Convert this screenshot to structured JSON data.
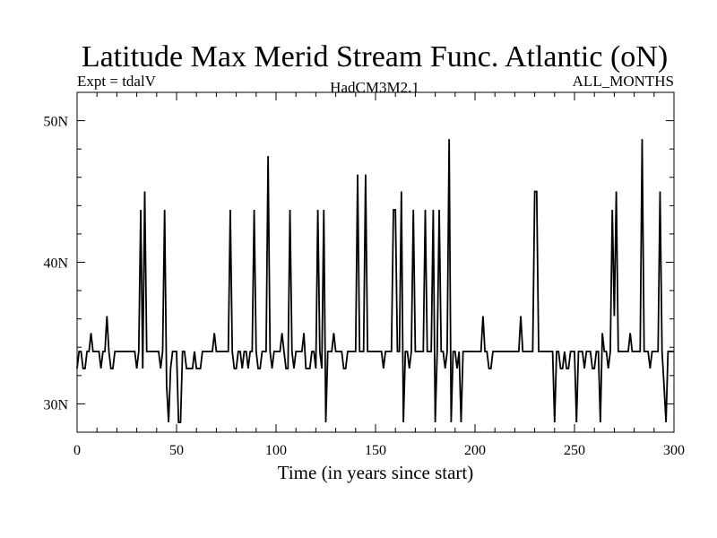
{
  "chart_data": {
    "type": "line",
    "title": "Latitude Max Merid Stream Func. Atlantic (oN)",
    "subtitle_left": "Expt = tdalV",
    "subtitle_center": "HadCM3M2.1",
    "subtitle_right": "ALL_MONTHS",
    "xlabel": "Time (in years since start)",
    "ylabel": "",
    "xlim": [
      0,
      300
    ],
    "ylim": [
      28,
      52
    ],
    "x_ticks": [
      0,
      50,
      100,
      150,
      200,
      250,
      300
    ],
    "x_tick_labels": [
      "0",
      "50",
      "100",
      "150",
      "200",
      "250",
      "300"
    ],
    "y_ticks": [
      30,
      40,
      50
    ],
    "y_tick_labels": [
      "30N",
      "40N",
      "50N"
    ],
    "grid": false,
    "line_color": "#000000",
    "series": [
      {
        "values": [
          [
            0,
            32.5
          ],
          [
            1,
            33.7
          ],
          [
            2,
            33.7
          ],
          [
            3,
            32.5
          ],
          [
            4,
            32.5
          ],
          [
            5,
            33.7
          ],
          [
            6,
            33.7
          ],
          [
            7,
            35.0
          ],
          [
            8,
            33.7
          ],
          [
            9,
            33.7
          ],
          [
            10,
            33.7
          ],
          [
            11,
            33.7
          ],
          [
            12,
            32.5
          ],
          [
            13,
            33.7
          ],
          [
            14,
            33.7
          ],
          [
            15,
            36.2
          ],
          [
            16,
            33.7
          ],
          [
            17,
            32.5
          ],
          [
            18,
            32.5
          ],
          [
            19,
            33.7
          ],
          [
            20,
            33.7
          ],
          [
            21,
            33.7
          ],
          [
            22,
            33.7
          ],
          [
            23,
            33.7
          ],
          [
            24,
            33.7
          ],
          [
            25,
            33.7
          ],
          [
            26,
            33.7
          ],
          [
            27,
            33.7
          ],
          [
            28,
            33.7
          ],
          [
            29,
            33.7
          ],
          [
            30,
            32.5
          ],
          [
            31,
            33.7
          ],
          [
            32,
            43.7
          ],
          [
            33,
            32.5
          ],
          [
            34,
            45.0
          ],
          [
            35,
            33.7
          ],
          [
            36,
            33.7
          ],
          [
            37,
            33.7
          ],
          [
            38,
            33.7
          ],
          [
            39,
            33.7
          ],
          [
            40,
            33.7
          ],
          [
            41,
            33.7
          ],
          [
            42,
            32.5
          ],
          [
            43,
            33.7
          ],
          [
            44,
            43.7
          ],
          [
            45,
            31.3
          ],
          [
            46,
            28.7
          ],
          [
            47,
            32.5
          ],
          [
            48,
            33.7
          ],
          [
            49,
            33.7
          ],
          [
            50,
            33.7
          ],
          [
            51,
            28.7
          ],
          [
            52,
            28.7
          ],
          [
            53,
            33.7
          ],
          [
            54,
            33.7
          ],
          [
            55,
            32.5
          ],
          [
            56,
            32.5
          ],
          [
            57,
            32.5
          ],
          [
            58,
            32.5
          ],
          [
            59,
            33.7
          ],
          [
            60,
            32.5
          ],
          [
            61,
            32.5
          ],
          [
            62,
            32.5
          ],
          [
            63,
            33.7
          ],
          [
            64,
            33.7
          ],
          [
            65,
            33.7
          ],
          [
            66,
            33.7
          ],
          [
            67,
            33.7
          ],
          [
            68,
            33.7
          ],
          [
            69,
            35.0
          ],
          [
            70,
            33.7
          ],
          [
            71,
            33.7
          ],
          [
            72,
            33.7
          ],
          [
            73,
            33.7
          ],
          [
            74,
            33.7
          ],
          [
            75,
            33.7
          ],
          [
            76,
            33.7
          ],
          [
            77,
            43.7
          ],
          [
            78,
            33.7
          ],
          [
            79,
            32.5
          ],
          [
            80,
            32.5
          ],
          [
            81,
            33.7
          ],
          [
            82,
            33.7
          ],
          [
            83,
            32.5
          ],
          [
            84,
            33.7
          ],
          [
            85,
            33.7
          ],
          [
            86,
            32.5
          ],
          [
            87,
            33.7
          ],
          [
            88,
            33.7
          ],
          [
            89,
            43.7
          ],
          [
            90,
            33.7
          ],
          [
            91,
            32.5
          ],
          [
            92,
            32.5
          ],
          [
            93,
            33.7
          ],
          [
            94,
            33.7
          ],
          [
            95,
            33.7
          ],
          [
            96,
            47.5
          ],
          [
            97,
            33.7
          ],
          [
            98,
            32.5
          ],
          [
            99,
            33.7
          ],
          [
            100,
            33.7
          ],
          [
            101,
            33.7
          ],
          [
            102,
            33.7
          ],
          [
            103,
            35.0
          ],
          [
            104,
            33.7
          ],
          [
            105,
            32.5
          ],
          [
            106,
            32.5
          ],
          [
            107,
            43.7
          ],
          [
            108,
            33.7
          ],
          [
            109,
            32.5
          ],
          [
            110,
            33.7
          ],
          [
            111,
            33.7
          ],
          [
            112,
            33.7
          ],
          [
            113,
            33.7
          ],
          [
            114,
            35.0
          ],
          [
            115,
            32.5
          ],
          [
            116,
            32.5
          ],
          [
            117,
            32.5
          ],
          [
            118,
            33.7
          ],
          [
            119,
            33.7
          ],
          [
            120,
            32.5
          ],
          [
            121,
            43.7
          ],
          [
            122,
            33.7
          ],
          [
            123,
            32.5
          ],
          [
            124,
            43.7
          ],
          [
            125,
            28.7
          ],
          [
            126,
            33.7
          ],
          [
            127,
            33.7
          ],
          [
            128,
            33.7
          ],
          [
            129,
            35.0
          ],
          [
            130,
            33.7
          ],
          [
            131,
            33.7
          ],
          [
            132,
            33.7
          ],
          [
            133,
            33.7
          ],
          [
            134,
            32.5
          ],
          [
            135,
            32.5
          ],
          [
            136,
            33.7
          ],
          [
            137,
            33.7
          ],
          [
            138,
            33.7
          ],
          [
            139,
            33.7
          ],
          [
            140,
            33.7
          ],
          [
            141,
            46.2
          ],
          [
            142,
            33.7
          ],
          [
            143,
            33.7
          ],
          [
            144,
            33.7
          ],
          [
            145,
            46.2
          ],
          [
            146,
            33.7
          ],
          [
            147,
            33.7
          ],
          [
            148,
            33.7
          ],
          [
            149,
            33.7
          ],
          [
            150,
            33.7
          ],
          [
            151,
            33.7
          ],
          [
            152,
            33.7
          ],
          [
            153,
            33.7
          ],
          [
            154,
            32.5
          ],
          [
            155,
            33.7
          ],
          [
            156,
            33.7
          ],
          [
            157,
            33.7
          ],
          [
            158,
            33.7
          ],
          [
            159,
            43.7
          ],
          [
            160,
            43.7
          ],
          [
            161,
            33.7
          ],
          [
            162,
            33.7
          ],
          [
            163,
            45.0
          ],
          [
            164,
            28.7
          ],
          [
            165,
            33.7
          ],
          [
            166,
            33.7
          ],
          [
            167,
            32.5
          ],
          [
            168,
            33.7
          ],
          [
            169,
            43.7
          ],
          [
            170,
            33.7
          ],
          [
            171,
            33.7
          ],
          [
            172,
            33.7
          ],
          [
            173,
            33.7
          ],
          [
            174,
            33.7
          ],
          [
            175,
            43.7
          ],
          [
            176,
            33.7
          ],
          [
            177,
            33.7
          ],
          [
            178,
            33.7
          ],
          [
            179,
            43.7
          ],
          [
            180,
            28.7
          ],
          [
            181,
            33.7
          ],
          [
            182,
            43.7
          ],
          [
            183,
            33.7
          ],
          [
            184,
            33.7
          ],
          [
            185,
            32.5
          ],
          [
            186,
            33.7
          ],
          [
            187,
            48.7
          ],
          [
            188,
            28.7
          ],
          [
            189,
            33.7
          ],
          [
            190,
            33.7
          ],
          [
            191,
            32.5
          ],
          [
            192,
            33.7
          ],
          [
            193,
            28.7
          ],
          [
            194,
            33.7
          ],
          [
            195,
            33.7
          ],
          [
            196,
            33.7
          ],
          [
            197,
            33.7
          ],
          [
            198,
            33.7
          ],
          [
            199,
            33.7
          ],
          [
            200,
            33.7
          ],
          [
            201,
            33.7
          ],
          [
            202,
            33.7
          ],
          [
            203,
            33.7
          ],
          [
            204,
            36.2
          ],
          [
            205,
            33.7
          ],
          [
            206,
            33.7
          ],
          [
            207,
            32.5
          ],
          [
            208,
            32.5
          ],
          [
            209,
            33.7
          ],
          [
            210,
            33.7
          ],
          [
            211,
            33.7
          ],
          [
            212,
            33.7
          ],
          [
            213,
            33.7
          ],
          [
            214,
            33.7
          ],
          [
            215,
            33.7
          ],
          [
            216,
            33.7
          ],
          [
            217,
            33.7
          ],
          [
            218,
            33.7
          ],
          [
            219,
            33.7
          ],
          [
            220,
            33.7
          ],
          [
            221,
            33.7
          ],
          [
            222,
            33.7
          ],
          [
            223,
            36.2
          ],
          [
            224,
            33.7
          ],
          [
            225,
            33.7
          ],
          [
            226,
            33.7
          ],
          [
            227,
            33.7
          ],
          [
            228,
            33.7
          ],
          [
            229,
            33.7
          ],
          [
            230,
            45.0
          ],
          [
            231,
            45.0
          ],
          [
            232,
            33.7
          ],
          [
            233,
            33.7
          ],
          [
            234,
            33.7
          ],
          [
            235,
            33.7
          ],
          [
            236,
            33.7
          ],
          [
            237,
            33.7
          ],
          [
            238,
            33.7
          ],
          [
            239,
            33.7
          ],
          [
            240,
            28.7
          ],
          [
            241,
            33.7
          ],
          [
            242,
            33.7
          ],
          [
            243,
            32.5
          ],
          [
            244,
            32.5
          ],
          [
            245,
            33.7
          ],
          [
            246,
            32.5
          ],
          [
            247,
            32.5
          ],
          [
            248,
            33.7
          ],
          [
            249,
            33.7
          ],
          [
            250,
            33.7
          ],
          [
            251,
            28.7
          ],
          [
            252,
            33.7
          ],
          [
            253,
            33.7
          ],
          [
            254,
            33.7
          ],
          [
            255,
            32.5
          ],
          [
            256,
            33.7
          ],
          [
            257,
            33.7
          ],
          [
            258,
            33.7
          ],
          [
            259,
            32.5
          ],
          [
            260,
            32.5
          ],
          [
            261,
            33.7
          ],
          [
            262,
            33.7
          ],
          [
            263,
            28.7
          ],
          [
            264,
            35.0
          ],
          [
            265,
            33.7
          ],
          [
            266,
            33.7
          ],
          [
            267,
            32.5
          ],
          [
            268,
            33.7
          ],
          [
            269,
            43.7
          ],
          [
            270,
            36.2
          ],
          [
            271,
            45.0
          ],
          [
            272,
            33.7
          ],
          [
            273,
            33.7
          ],
          [
            274,
            33.7
          ],
          [
            275,
            33.7
          ],
          [
            276,
            33.7
          ],
          [
            277,
            33.7
          ],
          [
            278,
            35.0
          ],
          [
            279,
            33.7
          ],
          [
            280,
            33.7
          ],
          [
            281,
            33.7
          ],
          [
            282,
            33.7
          ],
          [
            283,
            33.7
          ],
          [
            284,
            48.7
          ],
          [
            285,
            33.7
          ],
          [
            286,
            33.7
          ],
          [
            287,
            33.7
          ],
          [
            288,
            32.5
          ],
          [
            289,
            33.7
          ],
          [
            290,
            33.7
          ],
          [
            291,
            33.7
          ],
          [
            292,
            33.7
          ],
          [
            293,
            45.0
          ],
          [
            294,
            33.7
          ],
          [
            295,
            31.3
          ],
          [
            296,
            28.7
          ],
          [
            297,
            33.7
          ],
          [
            298,
            33.7
          ],
          [
            299,
            33.7
          ],
          [
            300,
            33.7
          ]
        ]
      }
    ]
  }
}
